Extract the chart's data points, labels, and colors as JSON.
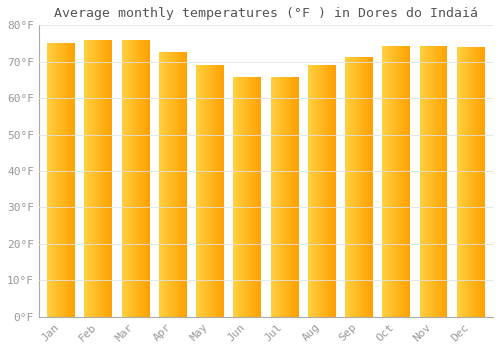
{
  "title": "Average monthly temperatures (°F ) in Dores do Indaiá",
  "months": [
    "Jan",
    "Feb",
    "Mar",
    "Apr",
    "May",
    "Jun",
    "Jul",
    "Aug",
    "Sep",
    "Oct",
    "Nov",
    "Dec"
  ],
  "values": [
    75.2,
    75.9,
    75.9,
    72.7,
    69.1,
    65.8,
    65.8,
    69.1,
    71.2,
    74.3,
    74.3,
    74.1
  ],
  "bar_color_left": "#FFD040",
  "bar_color_right": "#FFA000",
  "background_color": "#FFFFFF",
  "grid_color": "#E0E0E0",
  "text_color": "#999999",
  "title_color": "#555555",
  "ylim": [
    0,
    80
  ],
  "yticks": [
    0,
    10,
    20,
    30,
    40,
    50,
    60,
    70,
    80
  ],
  "title_fontsize": 9.5,
  "tick_fontsize": 8
}
